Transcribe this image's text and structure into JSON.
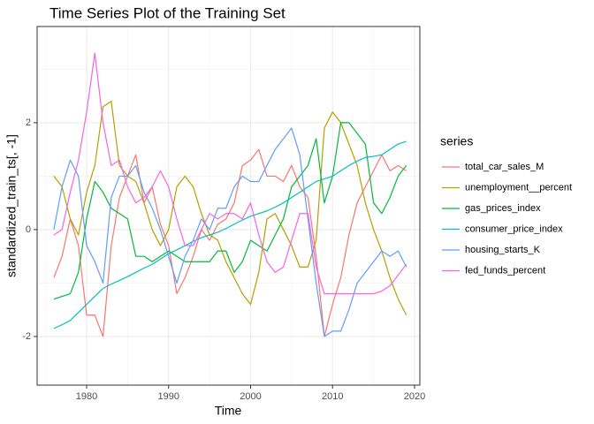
{
  "chart_data": {
    "type": "line",
    "title": "Time Series Plot of the Training Set",
    "x_label": "Time",
    "y_label": "standardized_train_ts[, -1]",
    "legend_title": "series",
    "legend_position": "right",
    "grid": true,
    "xlim": [
      1973.96,
      2020.65
    ],
    "ylim": [
      -2.91,
      3.8
    ],
    "xticks": [
      1980,
      1990,
      2000,
      2010,
      2020
    ],
    "yticks": [
      -2,
      0,
      2
    ],
    "x": [
      1976,
      1977,
      1978,
      1979,
      1980,
      1981,
      1982,
      1983,
      1984,
      1985,
      1986,
      1987,
      1988,
      1989,
      1990,
      1991,
      1992,
      1993,
      1994,
      1995,
      1996,
      1997,
      1998,
      1999,
      2000,
      2001,
      2002,
      2003,
      2004,
      2005,
      2006,
      2007,
      2008,
      2009,
      2010,
      2011,
      2012,
      2013,
      2014,
      2015,
      2016,
      2017,
      2018,
      2019
    ],
    "series": [
      {
        "name": "total_car_sales_M",
        "color": "#F8766D",
        "values": [
          -0.9,
          -0.5,
          0.2,
          -0.3,
          -1.6,
          -1.6,
          -2.0,
          -0.3,
          0.6,
          1.0,
          1.4,
          0.5,
          0.8,
          0.1,
          -0.3,
          -1.2,
          -0.9,
          -0.5,
          0.0,
          -0.2,
          0.1,
          0.2,
          0.5,
          1.2,
          1.3,
          1.5,
          1.0,
          1.0,
          0.9,
          1.2,
          0.8,
          0.6,
          -0.5,
          -2.0,
          -1.4,
          -0.9,
          -0.1,
          0.5,
          0.8,
          1.1,
          1.4,
          1.1,
          1.2,
          1.1
        ]
      },
      {
        "name": "unemployment__percent",
        "color": "#B79F00",
        "values": [
          1.0,
          0.8,
          0.2,
          -0.1,
          0.7,
          1.2,
          2.3,
          2.4,
          1.2,
          1.0,
          0.9,
          0.5,
          0.0,
          -0.3,
          0.0,
          0.8,
          1.0,
          0.8,
          0.3,
          -0.1,
          -0.2,
          -0.6,
          -0.9,
          -1.2,
          -1.4,
          -0.8,
          0.2,
          0.3,
          0.0,
          -0.3,
          -0.7,
          -0.7,
          -0.2,
          1.9,
          2.2,
          2.0,
          1.6,
          1.2,
          0.5,
          0.0,
          -0.4,
          -0.9,
          -1.3,
          -1.6
        ]
      },
      {
        "name": "gas_prices_index",
        "color": "#00BA38",
        "values": [
          -1.3,
          -1.25,
          -1.2,
          -0.8,
          0.2,
          0.9,
          0.7,
          0.4,
          0.3,
          0.2,
          -0.5,
          -0.5,
          -0.6,
          -0.5,
          -0.4,
          -0.5,
          -0.6,
          -0.6,
          -0.6,
          -0.6,
          -0.4,
          -0.4,
          -0.8,
          -0.6,
          -0.2,
          -0.3,
          -0.4,
          -0.1,
          0.2,
          0.8,
          1.0,
          1.2,
          1.7,
          0.5,
          1.0,
          2.0,
          2.0,
          1.8,
          1.6,
          0.5,
          0.3,
          0.6,
          1.0,
          1.2
        ]
      },
      {
        "name": "consumer_price_index",
        "color": "#00BFC4",
        "values": [
          -1.85,
          -1.78,
          -1.7,
          -1.55,
          -1.4,
          -1.25,
          -1.1,
          -1.02,
          -0.95,
          -0.88,
          -0.8,
          -0.72,
          -0.65,
          -0.55,
          -0.45,
          -0.38,
          -0.3,
          -0.22,
          -0.15,
          -0.1,
          -0.05,
          0.02,
          0.1,
          0.18,
          0.25,
          0.3,
          0.35,
          0.42,
          0.5,
          0.6,
          0.7,
          0.8,
          0.9,
          0.95,
          1.0,
          1.1,
          1.2,
          1.28,
          1.35,
          1.37,
          1.4,
          1.5,
          1.6,
          1.65
        ]
      },
      {
        "name": "housing_starts_K",
        "color": "#619CFF",
        "values": [
          0.0,
          0.8,
          1.3,
          1.0,
          -0.3,
          -0.6,
          -1.0,
          0.6,
          1.0,
          1.0,
          1.2,
          0.7,
          0.4,
          0.0,
          -0.5,
          -1.0,
          -0.5,
          -0.2,
          0.2,
          0.0,
          0.4,
          0.4,
          0.8,
          1.0,
          0.9,
          0.9,
          1.2,
          1.5,
          1.7,
          1.9,
          1.4,
          0.2,
          -1.0,
          -2.0,
          -1.9,
          -1.9,
          -1.5,
          -1.0,
          -0.8,
          -0.6,
          -0.4,
          -0.5,
          -0.4,
          -0.7
        ]
      },
      {
        "name": "fed_funds_percent",
        "color": "#F564E3",
        "values": [
          -0.1,
          0.0,
          0.7,
          1.3,
          2.2,
          3.3,
          2.0,
          1.2,
          1.3,
          0.8,
          0.5,
          0.6,
          0.8,
          1.1,
          0.8,
          0.2,
          -0.3,
          -0.3,
          0.0,
          0.3,
          0.2,
          0.3,
          0.3,
          0.2,
          0.5,
          -0.1,
          -0.6,
          -0.8,
          -0.7,
          -0.2,
          0.3,
          0.3,
          -0.7,
          -1.2,
          -1.2,
          -1.2,
          -1.2,
          -1.2,
          -1.2,
          -1.2,
          -1.15,
          -1.05,
          -0.85,
          -0.65
        ]
      }
    ]
  }
}
